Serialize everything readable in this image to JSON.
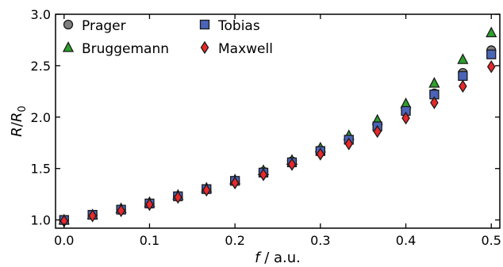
{
  "chart_data": {
    "type": "scatter",
    "title": "",
    "xlabel_var": "f",
    "xlabel_unit": " / a.u.",
    "ylabel_var": "R",
    "ylabel_sep": "/",
    "ylabel_sub_var": "R",
    "ylabel_sub": "0",
    "xlim": [
      -0.01,
      0.51
    ],
    "ylim": [
      0.92,
      3.0
    ],
    "xticks": [
      0.0,
      0.1,
      0.2,
      0.3,
      0.4,
      0.5
    ],
    "xtick_labels": [
      "0.0",
      "0.1",
      "0.2",
      "0.3",
      "0.4",
      "0.5"
    ],
    "yticks": [
      1.0,
      1.5,
      2.0,
      2.5,
      3.0
    ],
    "ytick_labels": [
      "1.0",
      "1.5",
      "2.0",
      "2.5",
      "3.0"
    ],
    "grid": false,
    "legend_position": "top-left",
    "x": [
      0.0,
      0.0333,
      0.0667,
      0.1,
      0.1333,
      0.1667,
      0.2,
      0.2333,
      0.2667,
      0.3,
      0.3333,
      0.3667,
      0.4,
      0.4333,
      0.4667,
      0.5
    ],
    "series": [
      {
        "name": "Prager",
        "marker": "circle",
        "color": "#7f7f7f",
        "values": [
          1.0,
          1.05,
          1.1,
          1.16,
          1.23,
          1.3,
          1.38,
          1.47,
          1.57,
          1.68,
          1.79,
          1.92,
          2.07,
          2.23,
          2.43,
          2.65
        ]
      },
      {
        "name": "Bruggemann",
        "marker": "triangle",
        "color": "#2ca02c",
        "values": [
          1.0,
          1.05,
          1.11,
          1.17,
          1.24,
          1.31,
          1.39,
          1.48,
          1.58,
          1.7,
          1.82,
          1.97,
          2.13,
          2.33,
          2.56,
          2.82
        ]
      },
      {
        "name": "Tobias",
        "marker": "square",
        "color": "#4a64b8",
        "values": [
          1.0,
          1.05,
          1.1,
          1.16,
          1.23,
          1.3,
          1.38,
          1.46,
          1.56,
          1.67,
          1.78,
          1.91,
          2.06,
          2.22,
          2.4,
          2.61
        ]
      },
      {
        "name": "Maxwell",
        "marker": "diamond",
        "color": "#e8282a",
        "values": [
          0.99,
          1.04,
          1.09,
          1.15,
          1.22,
          1.29,
          1.36,
          1.44,
          1.54,
          1.64,
          1.74,
          1.86,
          1.99,
          2.14,
          2.3,
          2.49
        ]
      }
    ]
  }
}
